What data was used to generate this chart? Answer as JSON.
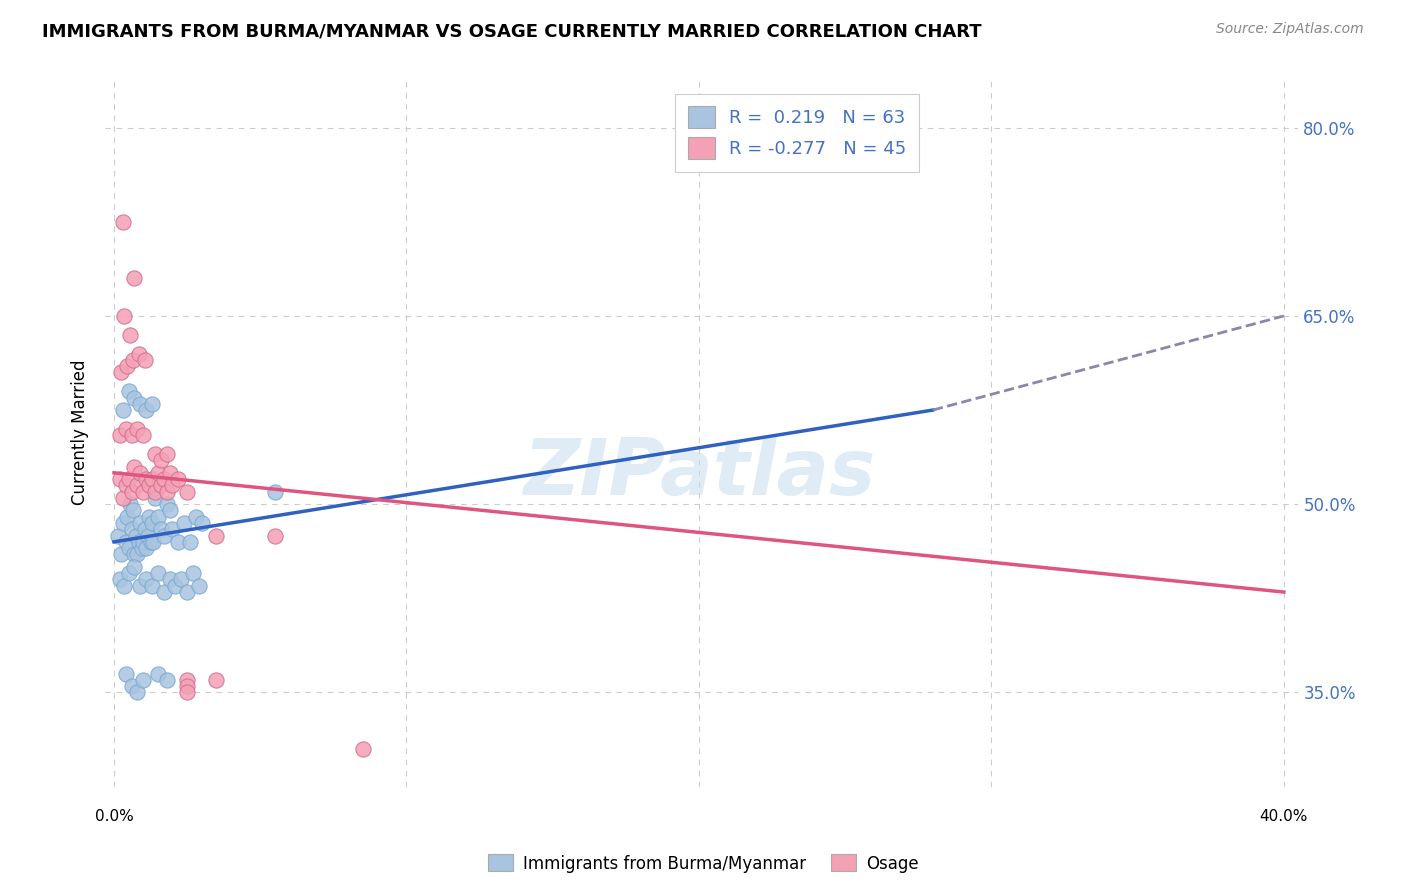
{
  "title": "IMMIGRANTS FROM BURMA/MYANMAR VS OSAGE CURRENTLY MARRIED CORRELATION CHART",
  "source": "Source: ZipAtlas.com",
  "ylabel": "Currently Married",
  "legend_blue_label": "Immigrants from Burma/Myanmar",
  "legend_pink_label": "Osage",
  "blue_color": "#a8c4e0",
  "pink_color": "#f4a0b5",
  "blue_line_color": "#3060c0",
  "pink_line_color": "#e05580",
  "blue_line_solid": [
    [
      0.0,
      47.0
    ],
    [
      28.0,
      57.5
    ]
  ],
  "blue_line_dashed": [
    [
      28.0,
      57.5
    ],
    [
      40.0,
      65.0
    ]
  ],
  "pink_line": [
    [
      0.0,
      52.5
    ],
    [
      40.0,
      43.0
    ]
  ],
  "blue_scatter": [
    [
      0.15,
      47.5
    ],
    [
      0.25,
      46.0
    ],
    [
      0.3,
      48.5
    ],
    [
      0.4,
      47.0
    ],
    [
      0.45,
      49.0
    ],
    [
      0.5,
      46.5
    ],
    [
      0.55,
      50.0
    ],
    [
      0.6,
      48.0
    ],
    [
      0.65,
      49.5
    ],
    [
      0.7,
      46.0
    ],
    [
      0.75,
      47.5
    ],
    [
      0.8,
      46.0
    ],
    [
      0.85,
      47.0
    ],
    [
      0.9,
      48.5
    ],
    [
      0.95,
      46.5
    ],
    [
      1.0,
      47.0
    ],
    [
      1.05,
      48.0
    ],
    [
      1.1,
      46.5
    ],
    [
      1.15,
      47.5
    ],
    [
      1.2,
      49.0
    ],
    [
      1.25,
      47.0
    ],
    [
      1.3,
      48.5
    ],
    [
      1.35,
      47.0
    ],
    [
      1.4,
      50.5
    ],
    [
      1.5,
      49.0
    ],
    [
      1.6,
      48.0
    ],
    [
      1.7,
      47.5
    ],
    [
      1.8,
      50.0
    ],
    [
      1.9,
      49.5
    ],
    [
      2.0,
      48.0
    ],
    [
      2.2,
      47.0
    ],
    [
      2.4,
      48.5
    ],
    [
      2.6,
      47.0
    ],
    [
      2.8,
      49.0
    ],
    [
      3.0,
      48.5
    ],
    [
      0.2,
      44.0
    ],
    [
      0.35,
      43.5
    ],
    [
      0.5,
      44.5
    ],
    [
      0.7,
      45.0
    ],
    [
      0.9,
      43.5
    ],
    [
      1.1,
      44.0
    ],
    [
      1.3,
      43.5
    ],
    [
      1.5,
      44.5
    ],
    [
      1.7,
      43.0
    ],
    [
      1.9,
      44.0
    ],
    [
      2.1,
      43.5
    ],
    [
      2.3,
      44.0
    ],
    [
      2.5,
      43.0
    ],
    [
      2.7,
      44.5
    ],
    [
      2.9,
      43.5
    ],
    [
      0.3,
      57.5
    ],
    [
      0.5,
      59.0
    ],
    [
      0.7,
      58.5
    ],
    [
      0.9,
      58.0
    ],
    [
      1.1,
      57.5
    ],
    [
      1.3,
      58.0
    ],
    [
      0.4,
      36.5
    ],
    [
      0.6,
      35.5
    ],
    [
      0.8,
      35.0
    ],
    [
      1.0,
      36.0
    ],
    [
      1.5,
      36.5
    ],
    [
      1.8,
      36.0
    ],
    [
      5.5,
      51.0
    ]
  ],
  "pink_scatter": [
    [
      0.2,
      52.0
    ],
    [
      0.3,
      50.5
    ],
    [
      0.4,
      51.5
    ],
    [
      0.5,
      52.0
    ],
    [
      0.6,
      51.0
    ],
    [
      0.7,
      53.0
    ],
    [
      0.8,
      51.5
    ],
    [
      0.9,
      52.5
    ],
    [
      1.0,
      51.0
    ],
    [
      1.1,
      52.0
    ],
    [
      1.2,
      51.5
    ],
    [
      1.3,
      52.0
    ],
    [
      1.4,
      51.0
    ],
    [
      1.5,
      52.5
    ],
    [
      1.6,
      51.5
    ],
    [
      1.7,
      52.0
    ],
    [
      1.8,
      51.0
    ],
    [
      1.9,
      52.5
    ],
    [
      2.0,
      51.5
    ],
    [
      2.2,
      52.0
    ],
    [
      0.2,
      55.5
    ],
    [
      0.4,
      56.0
    ],
    [
      0.6,
      55.5
    ],
    [
      0.8,
      56.0
    ],
    [
      1.0,
      55.5
    ],
    [
      0.25,
      60.5
    ],
    [
      0.45,
      61.0
    ],
    [
      0.65,
      61.5
    ],
    [
      0.85,
      62.0
    ],
    [
      1.05,
      61.5
    ],
    [
      0.35,
      65.0
    ],
    [
      0.55,
      63.5
    ],
    [
      1.4,
      54.0
    ],
    [
      1.6,
      53.5
    ],
    [
      1.8,
      54.0
    ],
    [
      2.5,
      51.0
    ],
    [
      5.5,
      47.5
    ],
    [
      3.5,
      47.5
    ],
    [
      0.3,
      72.5
    ],
    [
      0.7,
      68.0
    ],
    [
      2.5,
      36.0
    ],
    [
      2.5,
      35.5
    ],
    [
      3.5,
      36.0
    ],
    [
      8.5,
      30.5
    ],
    [
      2.5,
      35.0
    ]
  ],
  "x_min": -0.3,
  "x_max": 40.5,
  "y_min": 27.5,
  "y_max": 84.0,
  "y_ticks": [
    35.0,
    50.0,
    65.0,
    80.0
  ],
  "x_grid_vals": [
    0,
    10,
    20,
    30,
    40
  ],
  "watermark": "ZIPatlas",
  "background_color": "#ffffff",
  "grid_color": "#cccccc"
}
